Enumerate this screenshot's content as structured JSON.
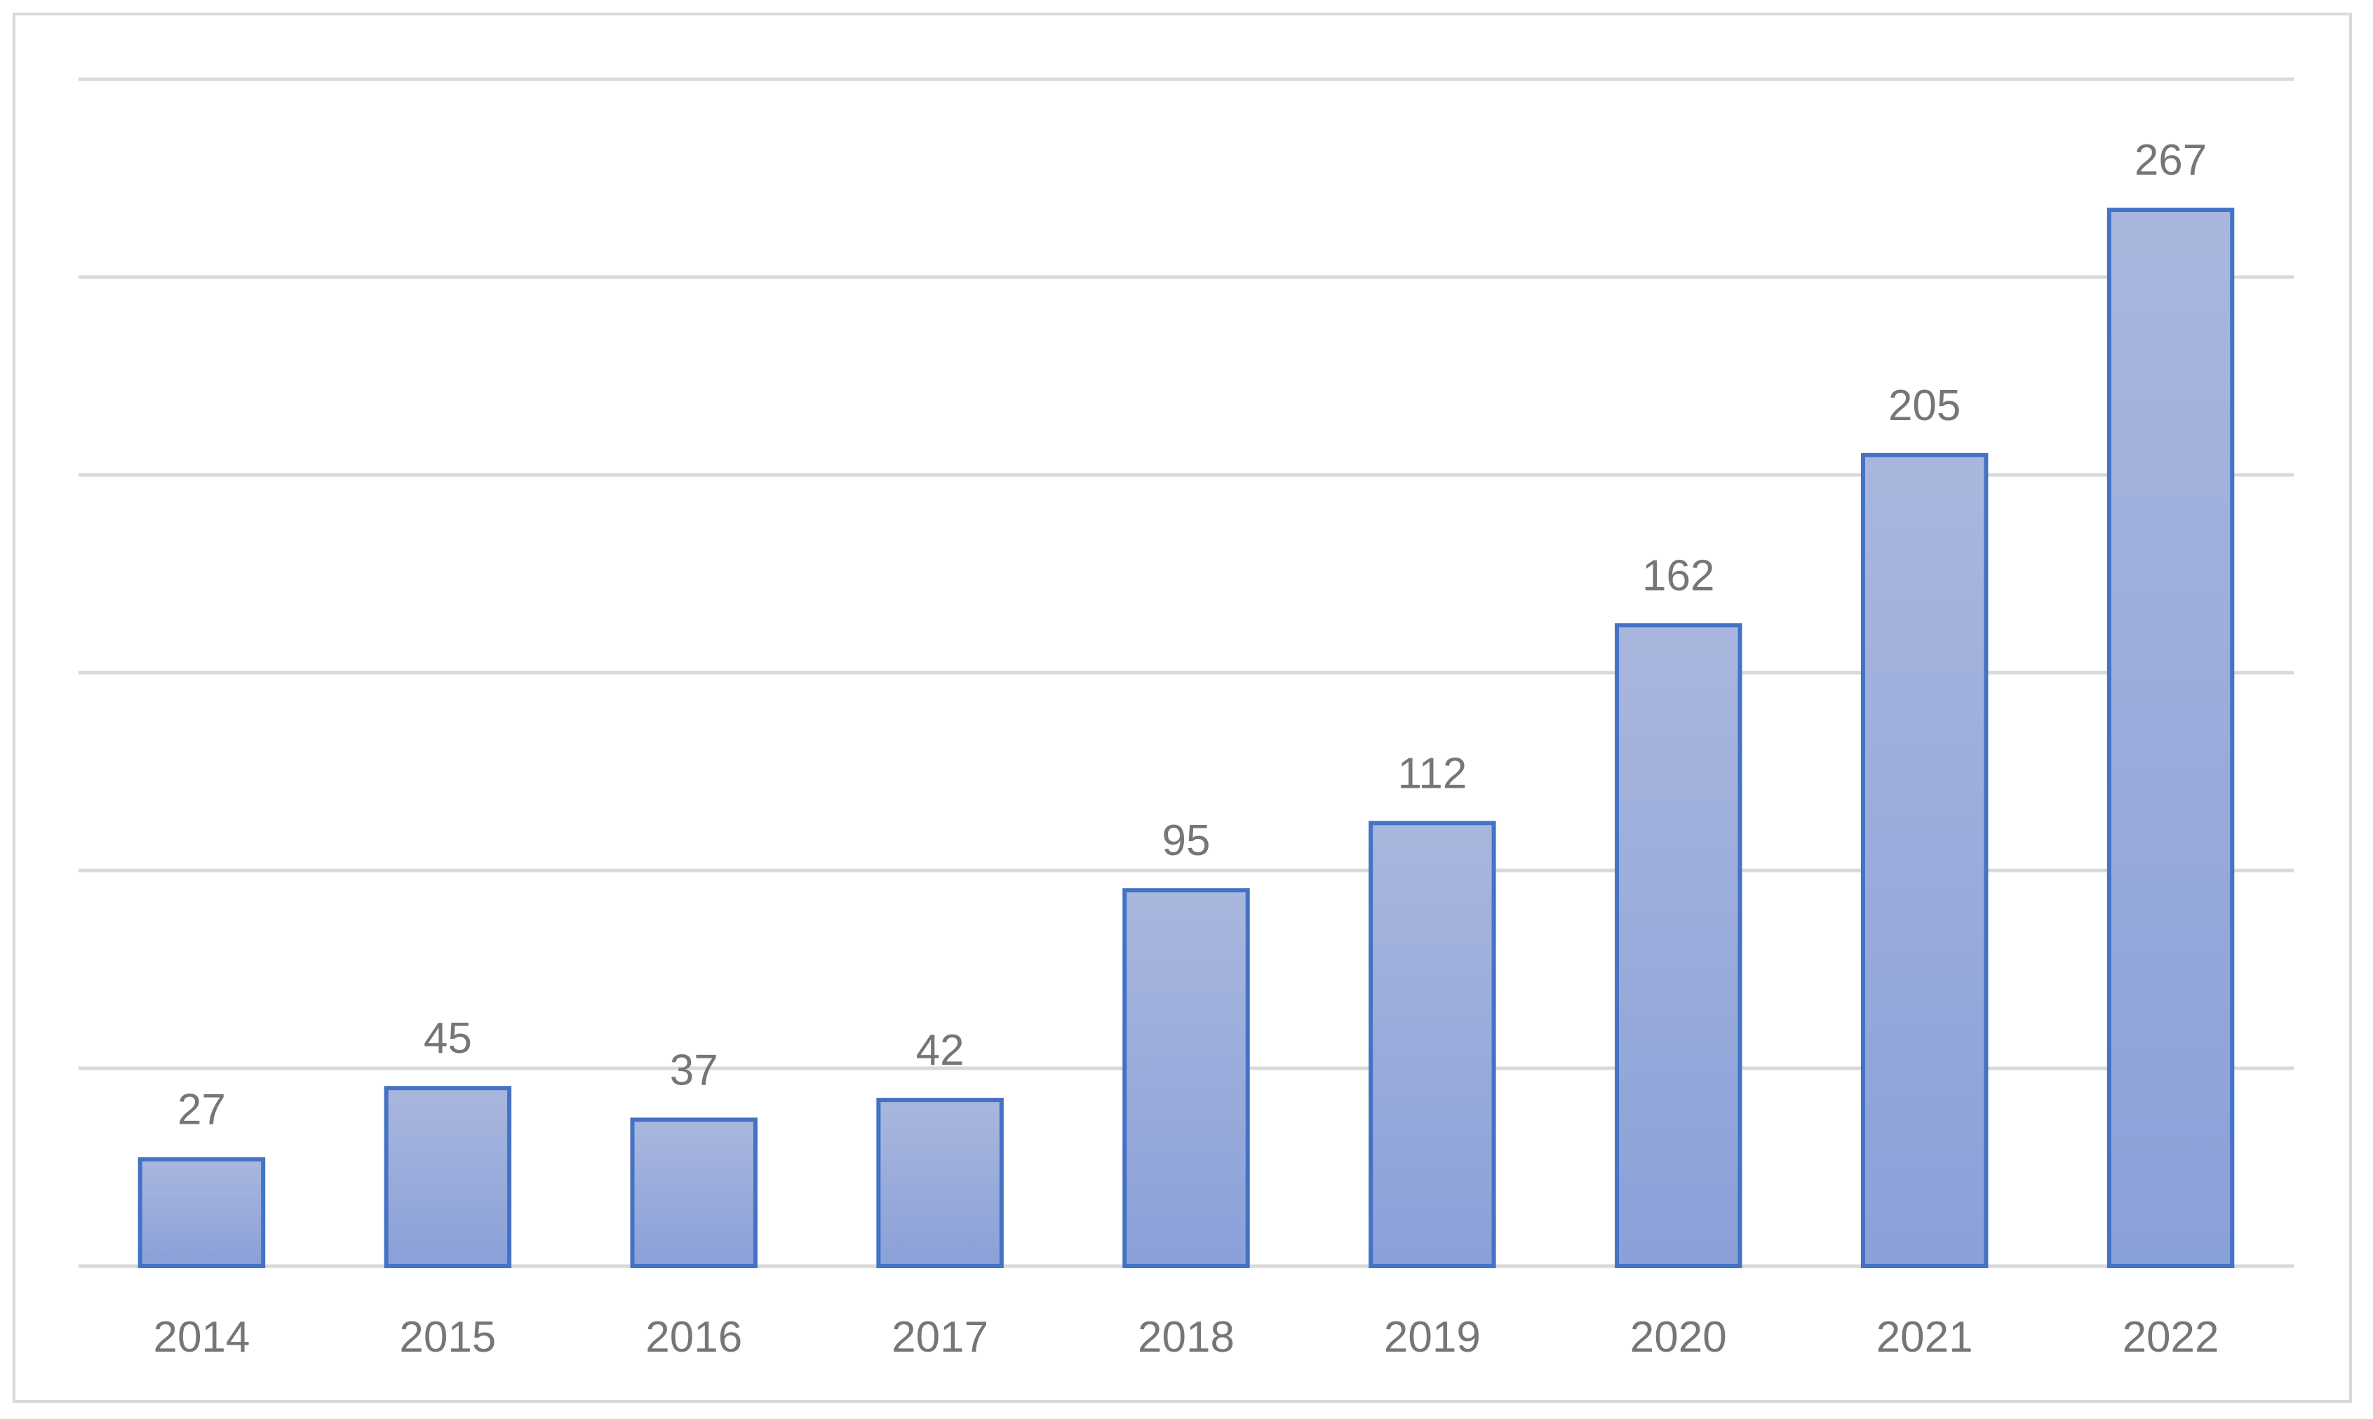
{
  "chart_data": {
    "type": "bar",
    "categories": [
      "2014",
      "2015",
      "2016",
      "2017",
      "2018",
      "2019",
      "2020",
      "2021",
      "2022"
    ],
    "values": [
      27,
      45,
      37,
      42,
      95,
      112,
      162,
      205,
      267
    ],
    "data_labels": [
      "27",
      "45",
      "37",
      "42",
      "95",
      "112",
      "162",
      "205",
      "267"
    ],
    "title": "",
    "xlabel": "",
    "ylabel": "",
    "ylim": [
      0,
      300
    ],
    "gridlines": true,
    "gridline_step": 50,
    "legend": "none",
    "colors": {
      "bar_fill_top": "#a9b7de",
      "bar_fill_bottom": "#8aa0d8",
      "bar_stroke": "#4472c4",
      "gridline": "#d9d9d9",
      "label_text": "#767676"
    }
  }
}
